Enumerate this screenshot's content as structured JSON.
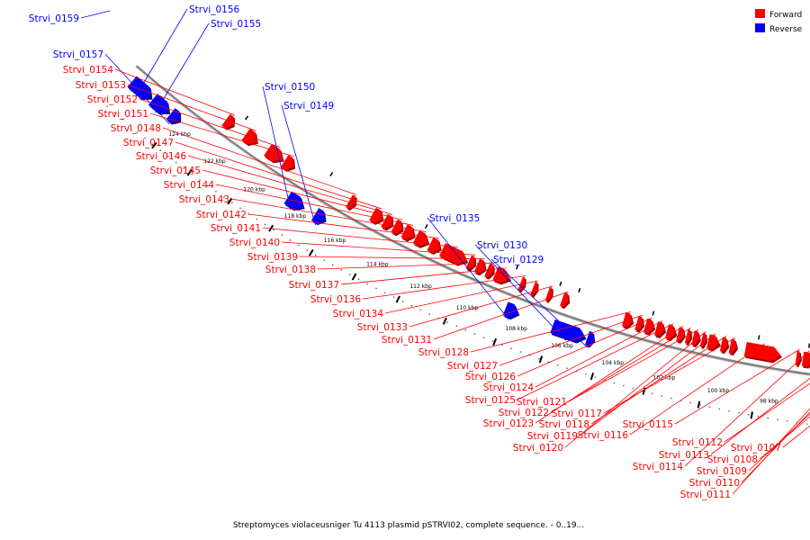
{
  "caption": "Streptomyces violaceusniger Tu 4113 plasmid pSTRVI02, complete sequence. - 0..19...",
  "legend": [
    {
      "label": "Forward",
      "color": "#ff0000"
    },
    {
      "label": "Reverse",
      "color": "#0000ff"
    }
  ],
  "colors": {
    "forward": "#ff0000",
    "reverse": "#0000ff",
    "backbone": "#808080"
  },
  "tick_labels": [
    "124 kbp",
    "122 kbp",
    "120 kbp",
    "118 kbp",
    "116 kbp",
    "114 kbp",
    "112 kbp",
    "110 kbp",
    "108 kbp",
    "106 kbp",
    "104 kbp",
    "102 kbp",
    "100 kbp",
    "98 kbp"
  ],
  "genes": [
    {
      "name": "Strvi_0159",
      "strand": "reverse"
    },
    {
      "name": "Strvi_0156",
      "strand": "reverse"
    },
    {
      "name": "Strvi_0155",
      "strand": "reverse"
    },
    {
      "name": "Strvi_0157",
      "strand": "reverse"
    },
    {
      "name": "Strvi_0154",
      "strand": "forward"
    },
    {
      "name": "Strvi_0153",
      "strand": "forward"
    },
    {
      "name": "Strvi_0152",
      "strand": "forward"
    },
    {
      "name": "Strvi_0151",
      "strand": "forward"
    },
    {
      "name": "Strvi_0150",
      "strand": "reverse"
    },
    {
      "name": "Strvi_0149",
      "strand": "reverse"
    },
    {
      "name": "Strvi_0148",
      "strand": "forward"
    },
    {
      "name": "Strvi_0147",
      "strand": "forward"
    },
    {
      "name": "Strvi_0146",
      "strand": "forward"
    },
    {
      "name": "Strvi_0145",
      "strand": "forward"
    },
    {
      "name": "Strvi_0144",
      "strand": "forward"
    },
    {
      "name": "Strvi_0143",
      "strand": "forward"
    },
    {
      "name": "Strvi_0142",
      "strand": "forward"
    },
    {
      "name": "Strvi_0141",
      "strand": "forward"
    },
    {
      "name": "Strvi_0140",
      "strand": "forward"
    },
    {
      "name": "Strvi_0139",
      "strand": "forward"
    },
    {
      "name": "Strvi_0138",
      "strand": "forward"
    },
    {
      "name": "Strvi_0137",
      "strand": "forward"
    },
    {
      "name": "Strvi_0136",
      "strand": "forward"
    },
    {
      "name": "Strvi_0135",
      "strand": "reverse"
    },
    {
      "name": "Strvi_0134",
      "strand": "forward"
    },
    {
      "name": "Strvi_0133",
      "strand": "forward"
    },
    {
      "name": "Strvi_0131",
      "strand": "forward"
    },
    {
      "name": "Strvi_0130",
      "strand": "reverse"
    },
    {
      "name": "Strvi_0129",
      "strand": "reverse"
    },
    {
      "name": "Strvi_0128",
      "strand": "forward"
    },
    {
      "name": "Strvi_0127",
      "strand": "forward"
    },
    {
      "name": "Strvi_0126",
      "strand": "forward"
    },
    {
      "name": "Strvi_0124",
      "strand": "forward"
    },
    {
      "name": "Strvi_0125",
      "strand": "forward"
    },
    {
      "name": "Strvi_0123",
      "strand": "forward"
    },
    {
      "name": "Strvi_0122",
      "strand": "forward"
    },
    {
      "name": "Strvi_0121",
      "strand": "forward"
    },
    {
      "name": "Strvi_0120",
      "strand": "forward"
    },
    {
      "name": "Strvi_0119",
      "strand": "forward"
    },
    {
      "name": "Strvi_0118",
      "strand": "forward"
    },
    {
      "name": "Strvi_0117",
      "strand": "forward"
    },
    {
      "name": "Strvi_0116",
      "strand": "forward"
    },
    {
      "name": "Strvi_0115",
      "strand": "forward"
    },
    {
      "name": "Strvi_0114",
      "strand": "forward"
    },
    {
      "name": "Strvi_0113",
      "strand": "forward"
    },
    {
      "name": "Strvi_0112",
      "strand": "forward"
    },
    {
      "name": "Strvi_0111",
      "strand": "forward"
    },
    {
      "name": "Strvi_0110",
      "strand": "forward"
    },
    {
      "name": "Strvi_0109",
      "strand": "forward"
    },
    {
      "name": "Strvi_0108",
      "strand": "forward"
    },
    {
      "name": "Strvi_0107",
      "strand": "forward"
    }
  ]
}
